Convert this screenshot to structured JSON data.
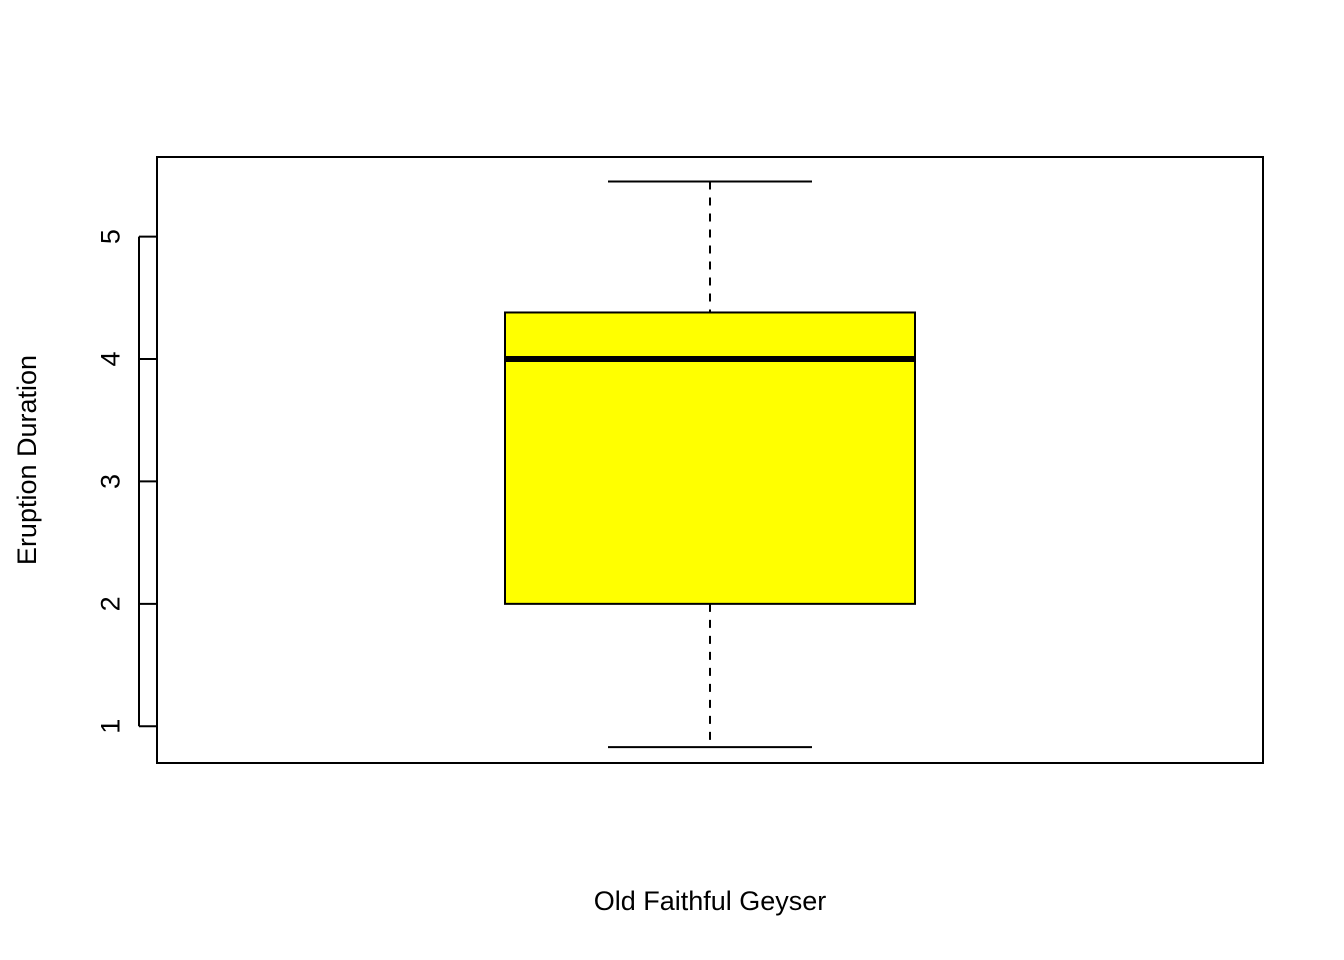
{
  "chart_data": {
    "type": "boxplot",
    "title": "",
    "xlabel": "Old Faithful Geyser",
    "ylabel": "Eruption Duration",
    "ylim": [
      0.7,
      5.65
    ],
    "yticks": [
      1,
      2,
      3,
      4,
      5
    ],
    "ytick_labels": [
      "1",
      "2",
      "3",
      "4",
      "5"
    ],
    "grid": false,
    "legend": "none",
    "box": {
      "whisker_low": 0.83,
      "q1": 2.0,
      "median": 4.0,
      "q3": 4.38,
      "whisker_high": 5.45,
      "fill_color": "#ffff00",
      "line_color": "#000000"
    }
  }
}
